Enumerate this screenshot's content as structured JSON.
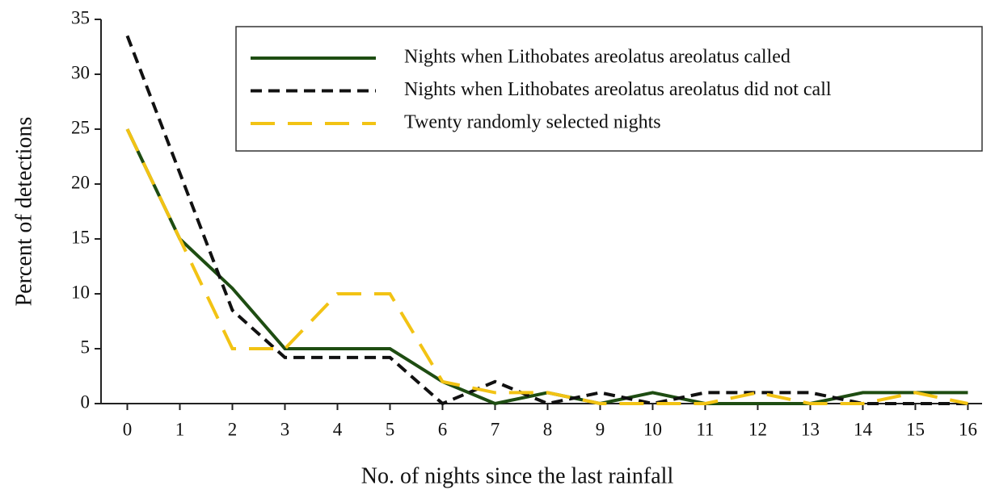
{
  "chart_data": {
    "type": "line",
    "xlabel": "No. of nights since the last rainfall",
    "ylabel": "Percent of detections",
    "x": [
      0,
      1,
      2,
      3,
      4,
      5,
      6,
      7,
      8,
      9,
      10,
      11,
      12,
      13,
      14,
      15,
      16
    ],
    "series": [
      {
        "name": "Nights when Lithobates areolatus areolatus called",
        "color": "#1e4d12",
        "dash": "solid",
        "values": [
          25,
          15,
          10.5,
          5,
          5,
          5,
          2,
          0,
          1,
          0,
          1,
          0,
          0,
          0,
          1,
          1,
          1
        ]
      },
      {
        "name": "Nights when Lithobates areolatus areolatus did not call",
        "color": "#111111",
        "dash": "short",
        "values": [
          33.5,
          21,
          8.5,
          4.2,
          4.2,
          4.2,
          0,
          2,
          0,
          1,
          0,
          1,
          1,
          1,
          0,
          0,
          0
        ]
      },
      {
        "name": "Twenty randomly selected nights",
        "color": "#f2c314",
        "dash": "long",
        "values": [
          25,
          15,
          5,
          5,
          10,
          10,
          2,
          1,
          1,
          0,
          0,
          0,
          1,
          0,
          0,
          1,
          0
        ]
      }
    ],
    "xlim": [
      -0.5,
      16.27
    ],
    "xticks": [
      0,
      1,
      2,
      3,
      4,
      5,
      6,
      7,
      8,
      9,
      10,
      11,
      12,
      13,
      14,
      15,
      16
    ],
    "ylim": [
      0,
      35
    ],
    "yticks": [
      0,
      5,
      10,
      15,
      20,
      25,
      30,
      35
    ],
    "legend": "upper right"
  }
}
